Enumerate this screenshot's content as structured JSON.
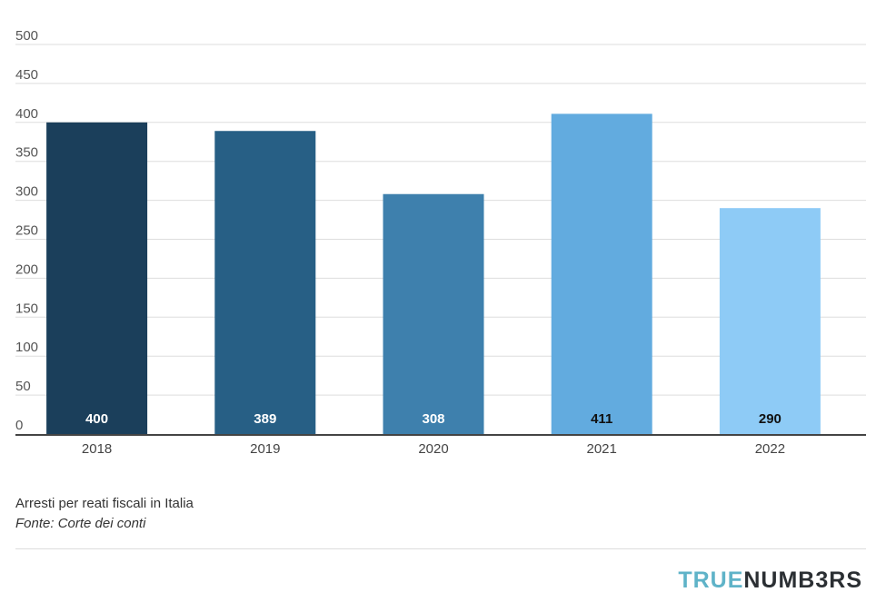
{
  "chart_data": {
    "type": "bar",
    "categories": [
      "2018",
      "2019",
      "2020",
      "2021",
      "2022"
    ],
    "values": [
      400,
      389,
      308,
      411,
      290
    ],
    "data_labels": [
      "400",
      "389",
      "308",
      "411",
      "290"
    ],
    "bar_colors": [
      "#1b3f5b",
      "#275f85",
      "#3e80ad",
      "#62abdf",
      "#8ecbf6"
    ],
    "label_colors": [
      "#ffffff",
      "#ffffff",
      "#ffffff",
      "#111111",
      "#111111"
    ],
    "yticks": [
      "0",
      "50",
      "100",
      "150",
      "200",
      "250",
      "300",
      "350",
      "400",
      "450",
      "500"
    ],
    "ylim": [
      0,
      500
    ],
    "grid": true,
    "legend": "none",
    "title": "",
    "xlabel": "",
    "ylabel": ""
  },
  "caption": {
    "title": "Arresti per reati fiscali in Italia",
    "source": "Fonte: Corte dei conti"
  },
  "brand": {
    "part_a": "TRUE",
    "part_b": "NUMB3RS",
    "colors": {
      "part_a": "#5fb3c8",
      "part_b": "#2b2f33"
    }
  }
}
